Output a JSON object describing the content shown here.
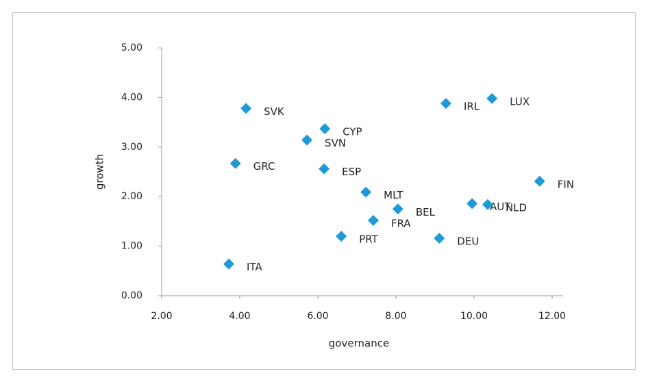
{
  "chart_data": {
    "type": "scatter",
    "xlabel": "governance",
    "ylabel": "growth",
    "labels": [
      "SVK",
      "CYP",
      "SVN",
      "GRC",
      "ESP",
      "MLT",
      "BEL",
      "FRA",
      "PRT",
      "DEU",
      "ITA",
      "IRL",
      "LUX",
      "FIN",
      "AUT",
      "NLD"
    ],
    "x": [
      4.16,
      6.18,
      5.72,
      3.89,
      6.16,
      7.23,
      8.05,
      7.42,
      6.6,
      9.11,
      3.72,
      9.28,
      10.46,
      11.68,
      9.95,
      10.35
    ],
    "values": [
      3.78,
      3.37,
      3.14,
      2.67,
      2.56,
      2.09,
      1.75,
      1.52,
      1.2,
      1.16,
      0.64,
      3.88,
      3.98,
      2.31,
      1.86,
      1.84
    ],
    "color": "#1e9bd7",
    "xlim": [
      2,
      12.28
    ],
    "ylim": [
      0,
      5
    ],
    "xticks": [
      {
        "value": 2,
        "label": "2.00"
      },
      {
        "value": 4,
        "label": "4.00"
      },
      {
        "value": 6,
        "label": "6.00"
      },
      {
        "value": 8,
        "label": "8.00"
      },
      {
        "value": 10,
        "label": "10.00"
      },
      {
        "value": 12,
        "label": "12.00"
      }
    ],
    "yticks": [
      {
        "value": 0,
        "label": "0.00"
      },
      {
        "value": 1,
        "label": "1.00"
      },
      {
        "value": 2,
        "label": "2.00"
      },
      {
        "value": 3,
        "label": "3.00"
      },
      {
        "value": 4,
        "label": "4.00"
      },
      {
        "value": 5,
        "label": "5.00"
      }
    ],
    "grid": false
  }
}
